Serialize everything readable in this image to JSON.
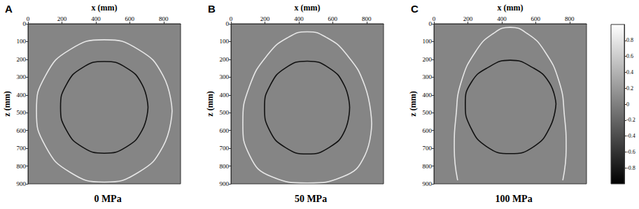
{
  "chart_data": [
    {
      "type": "line",
      "panel": "A",
      "title": "0 MPa",
      "xlabel": "x (mm)",
      "ylabel": "z (mm)",
      "xlim": [
        0,
        900
      ],
      "ylim": [
        0,
        900
      ],
      "xticks": [
        0,
        200,
        400,
        600,
        800
      ],
      "yticks": [
        0,
        100,
        200,
        300,
        400,
        500,
        600,
        700,
        800,
        900
      ],
      "grid": false,
      "series": [
        {
          "color": "#e6e6e6",
          "x": [
            850,
            796,
            650,
            450,
            250,
            104,
            50,
            104,
            250,
            450,
            650,
            796,
            850
          ],
          "values": [
            490,
            290,
            144,
            90,
            144,
            290,
            490,
            690,
            836,
            890,
            836,
            690,
            490
          ]
        },
        {
          "color": "#111111",
          "x": [
            708,
            673,
            579,
            450,
            321,
            227,
            192,
            227,
            321,
            450,
            579,
            673,
            708
          ],
          "values": [
            470,
            341,
            247,
            212,
            247,
            341,
            470,
            599,
            693,
            728,
            693,
            599,
            470
          ]
        }
      ]
    },
    {
      "type": "line",
      "panel": "B",
      "title": "50 MPa",
      "xlabel": "x (mm)",
      "ylabel": "z (mm)",
      "xlim": [
        0,
        900
      ],
      "ylim": [
        0,
        900
      ],
      "xticks": [
        0,
        200,
        400,
        600,
        800
      ],
      "yticks": [
        0,
        100,
        200,
        300,
        400,
        500,
        600,
        700,
        800,
        900
      ],
      "grid": false,
      "series": [
        {
          "color": "#e6e6e6",
          "x": [
            830,
            790,
            680,
            560,
            450,
            340,
            220,
            110,
            70,
            110,
            240,
            450,
            660,
            790,
            830
          ],
          "values": [
            560,
            350,
            170,
            75,
            45,
            75,
            170,
            350,
            560,
            740,
            860,
            895,
            860,
            740,
            560
          ]
        },
        {
          "color": "#111111",
          "x": [
            700,
            668,
            578,
            450,
            322,
            232,
            198,
            228,
            320,
            450,
            580,
            672,
            700
          ],
          "values": [
            470,
            345,
            248,
            210,
            248,
            345,
            470,
            600,
            695,
            732,
            695,
            600,
            470
          ]
        }
      ]
    },
    {
      "type": "line",
      "panel": "C",
      "title": "100 MPa",
      "xlabel": "x (mm)",
      "ylabel": "z (mm)",
      "xlim": [
        0,
        900
      ],
      "ylim": [
        0,
        900
      ],
      "xticks": [
        0,
        200,
        400,
        600,
        800
      ],
      "yticks": [
        0,
        100,
        200,
        300,
        400,
        500,
        600,
        700,
        800,
        900
      ],
      "grid": false,
      "series": [
        {
          "color": "#e6e6e6",
          "x": [
            140,
            120,
            130,
            160,
            250,
            350,
            450,
            550,
            650,
            740,
            770,
            780,
            760
          ],
          "values": [
            880,
            700,
            520,
            330,
            150,
            55,
            20,
            55,
            150,
            330,
            520,
            700,
            880
          ]
        },
        {
          "color": "#111111",
          "x": [
            720,
            680,
            580,
            450,
            320,
            220,
            185,
            215,
            310,
            450,
            590,
            685,
            720
          ],
          "values": [
            450,
            330,
            245,
            205,
            245,
            330,
            450,
            580,
            690,
            730,
            690,
            580,
            450
          ]
        }
      ],
      "colorbar": {
        "range": [
          -1,
          1
        ],
        "ticks": [
          -0.8,
          -0.6,
          -0.4,
          -0.2,
          0,
          0.2,
          0.4,
          0.6,
          0.8
        ]
      }
    }
  ]
}
